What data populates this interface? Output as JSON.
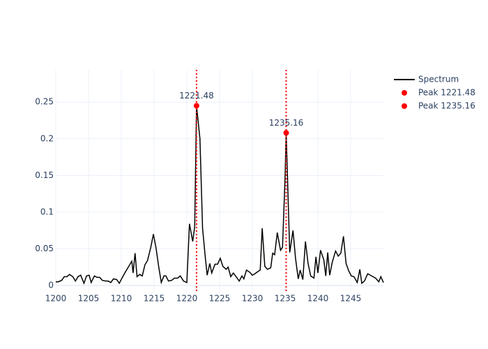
{
  "chart_data": {
    "type": "line",
    "x": [
      1200.0,
      1200.4,
      1200.9,
      1201.3,
      1201.7,
      1202.1,
      1202.6,
      1203.0,
      1203.4,
      1203.8,
      1204.3,
      1204.7,
      1205.1,
      1205.4,
      1205.9,
      1206.3,
      1206.7,
      1207.1,
      1207.6,
      1208.0,
      1208.4,
      1208.8,
      1209.3,
      1209.7,
      1210.1,
      1210.6,
      1211.2,
      1211.6,
      1211.8,
      1212.1,
      1212.4,
      1212.8,
      1213.2,
      1213.6,
      1214.0,
      1214.5,
      1214.9,
      1215.3,
      1215.7,
      1216.1,
      1216.5,
      1216.8,
      1217.2,
      1217.7,
      1218.1,
      1218.6,
      1219.0,
      1219.5,
      1220.0,
      1220.4,
      1220.9,
      1221.2,
      1221.48,
      1222.0,
      1222.4,
      1222.8,
      1223.1,
      1223.5,
      1223.8,
      1224.3,
      1224.7,
      1225.1,
      1225.5,
      1226.0,
      1226.3,
      1226.7,
      1227.1,
      1227.6,
      1228.0,
      1228.4,
      1228.7,
      1229.1,
      1229.6,
      1230.0,
      1230.4,
      1230.7,
      1231.2,
      1231.5,
      1231.9,
      1232.3,
      1232.8,
      1233.1,
      1233.4,
      1233.8,
      1234.3,
      1234.6,
      1235.0,
      1235.16,
      1235.7,
      1236.2,
      1236.6,
      1237.0,
      1237.3,
      1237.7,
      1238.1,
      1238.5,
      1238.9,
      1239.4,
      1239.7,
      1240.0,
      1240.4,
      1240.9,
      1241.2,
      1241.5,
      1241.8,
      1242.2,
      1242.7,
      1243.1,
      1243.5,
      1243.9,
      1244.3,
      1244.7,
      1245.1,
      1245.5,
      1246.0,
      1246.4,
      1246.7,
      1247.1,
      1247.6,
      1248.0,
      1248.4,
      1248.8,
      1249.3,
      1249.6,
      1250.0
    ],
    "series": [
      {
        "name": "Spectrum",
        "color": "#000000",
        "values": [
          0.005,
          0.005,
          0.007,
          0.012,
          0.012,
          0.015,
          0.012,
          0.006,
          0.012,
          0.014,
          0.003,
          0.013,
          0.014,
          0.004,
          0.013,
          0.011,
          0.011,
          0.007,
          0.006,
          0.006,
          0.004,
          0.009,
          0.008,
          0.003,
          0.01,
          0.018,
          0.027,
          0.033,
          0.017,
          0.044,
          0.012,
          0.015,
          0.013,
          0.028,
          0.034,
          0.052,
          0.07,
          0.051,
          0.026,
          0.004,
          0.013,
          0.013,
          0.006,
          0.007,
          0.01,
          0.01,
          0.013,
          0.006,
          0.004,
          0.084,
          0.06,
          0.08,
          0.245,
          0.2,
          0.078,
          0.04,
          0.014,
          0.03,
          0.017,
          0.029,
          0.029,
          0.037,
          0.026,
          0.022,
          0.025,
          0.012,
          0.017,
          0.011,
          0.006,
          0.013,
          0.009,
          0.021,
          0.018,
          0.014,
          0.016,
          0.018,
          0.021,
          0.078,
          0.026,
          0.022,
          0.024,
          0.044,
          0.042,
          0.072,
          0.048,
          0.052,
          0.15,
          0.208,
          0.045,
          0.075,
          0.036,
          0.009,
          0.021,
          0.008,
          0.06,
          0.03,
          0.013,
          0.01,
          0.039,
          0.017,
          0.048,
          0.035,
          0.013,
          0.045,
          0.014,
          0.032,
          0.047,
          0.04,
          0.044,
          0.067,
          0.03,
          0.02,
          0.013,
          0.012,
          0.004,
          0.022,
          0.003,
          0.006,
          0.016,
          0.014,
          0.012,
          0.01,
          0.005,
          0.012,
          0.004
        ]
      }
    ],
    "peaks": [
      {
        "name": "Peak 1221.48",
        "x": 1221.48,
        "y": 0.245,
        "label": "1221.48",
        "color": "#ff0000"
      },
      {
        "name": "Peak 1235.16",
        "x": 1235.16,
        "y": 0.208,
        "label": "1235.16",
        "color": "#ff0000"
      }
    ],
    "xlim": [
      1200,
      1250
    ],
    "ylim": [
      -0.0105,
      0.294
    ],
    "xticks": [
      1200,
      1205,
      1210,
      1215,
      1220,
      1225,
      1230,
      1235,
      1240,
      1245
    ],
    "yticks": [
      0,
      0.05,
      0.1,
      0.15,
      0.2,
      0.25
    ],
    "grid": true
  }
}
